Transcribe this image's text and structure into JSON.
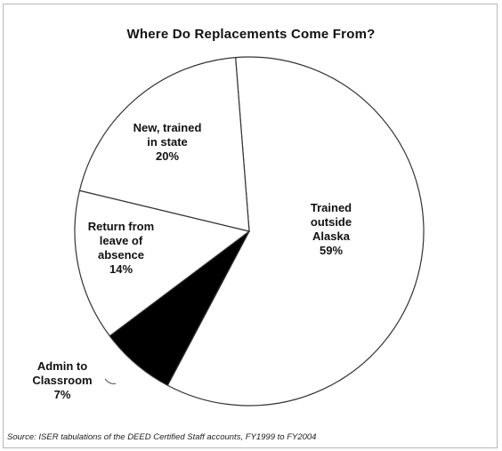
{
  "chart_data": {
    "type": "pie",
    "title": "Where Do Replacements Come From?",
    "slices": [
      {
        "label": [
          "Trained",
          "outside",
          "Alaska"
        ],
        "value_label": "59%",
        "value": 59,
        "color": "#ffffff"
      },
      {
        "label": [
          "Admin to",
          "Classroom"
        ],
        "value_label": "7%",
        "value": 7,
        "color": "#000000"
      },
      {
        "label": [
          "Return from",
          "leave of",
          "absence"
        ],
        "value_label": "14%",
        "value": 14,
        "color": "#ffffff"
      },
      {
        "label": [
          "New, trained",
          "in state"
        ],
        "value_label": "20%",
        "value": 20,
        "color": "#ffffff"
      }
    ],
    "source": "Source: ISER tabulations of the DEED Certified Staff accounts, FY1999 to FY2004"
  }
}
